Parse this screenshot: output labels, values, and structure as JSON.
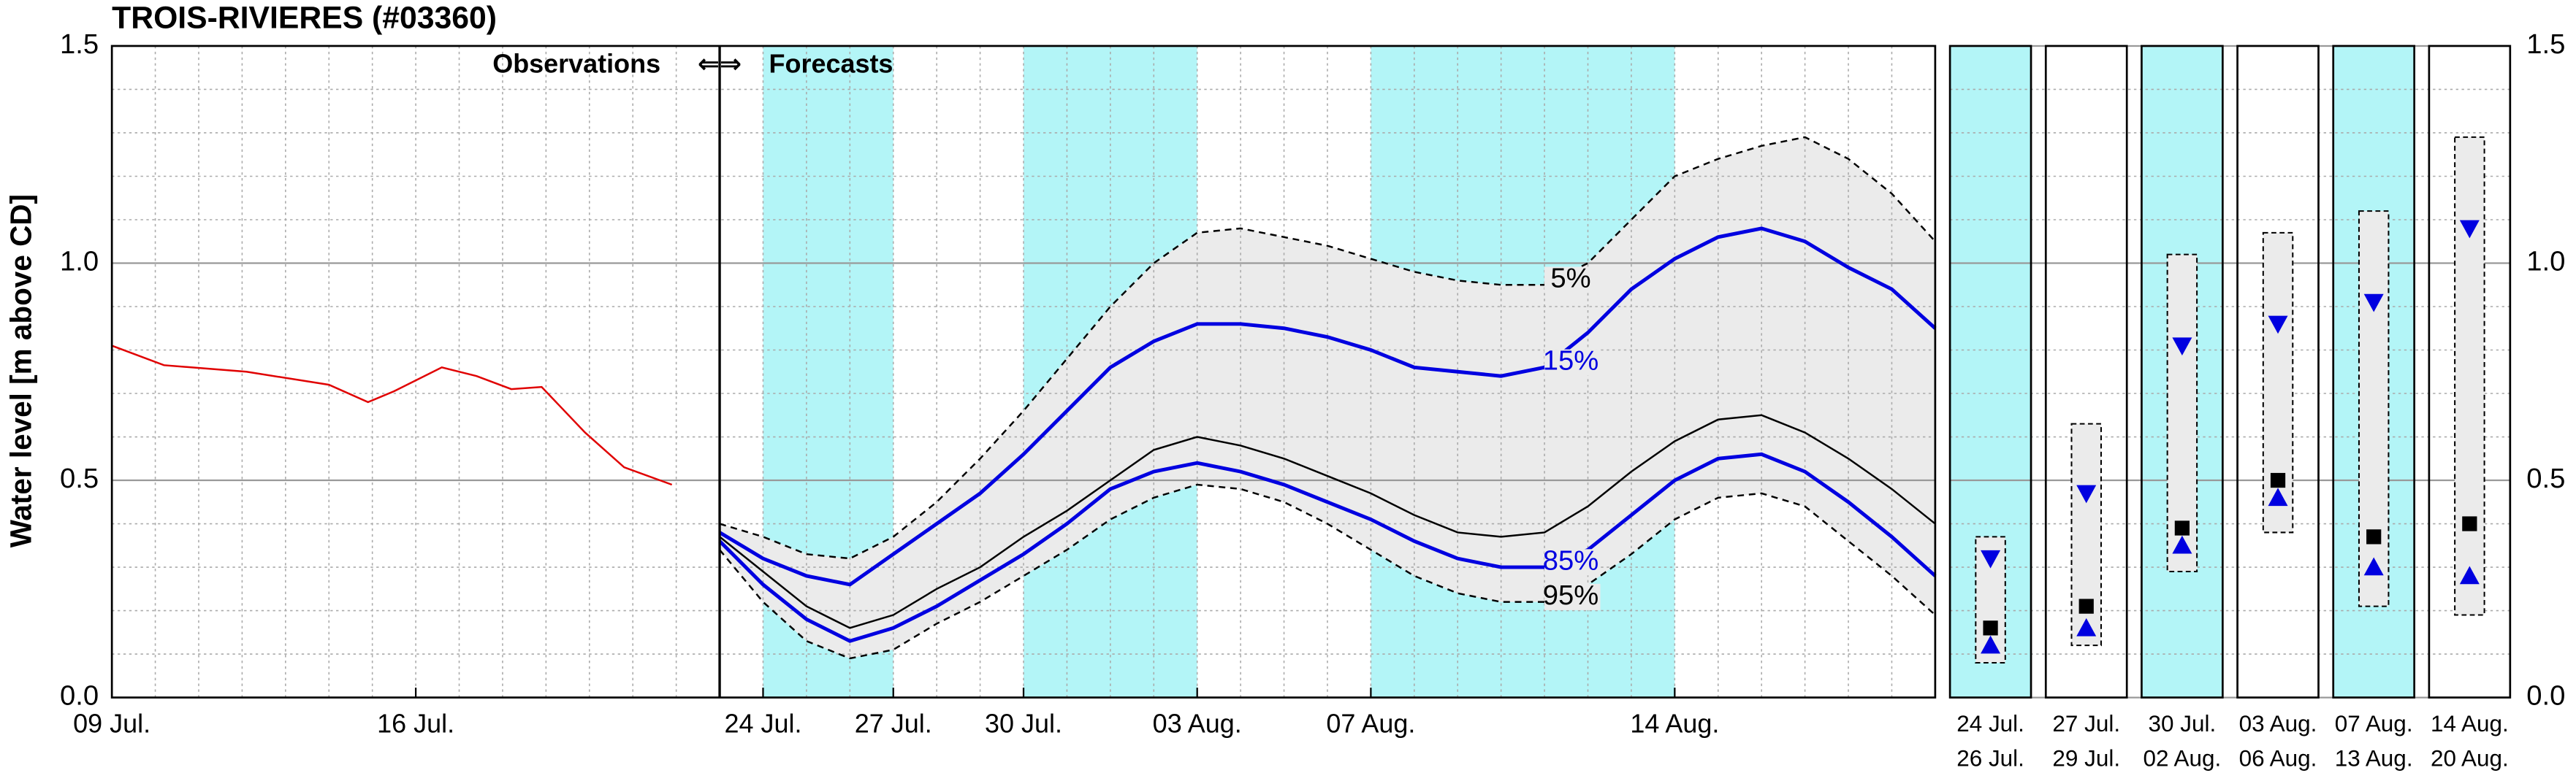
{
  "chart_data": [
    {
      "type": "line",
      "title": "TROIS-RIVIERES (#03360)",
      "ylabel": "Water level [m above CD]",
      "annotations": {
        "observations": "Observations",
        "arrows": "⇐⇒",
        "forecasts": "Forecasts"
      },
      "forecast_start": 14,
      "shaded_spans": [
        [
          15,
          18
        ],
        [
          21,
          25
        ],
        [
          29,
          36
        ]
      ],
      "shade_color": "#b3f5f7",
      "band_color": "#ebebeb",
      "xlim": [
        0,
        42
      ],
      "xticks": [
        {
          "value": 0,
          "label": "09 Jul."
        },
        {
          "value": 7,
          "label": "16 Jul."
        },
        {
          "value": 15,
          "label": "24 Jul."
        },
        {
          "value": 18,
          "label": "27 Jul."
        },
        {
          "value": 21,
          "label": "30 Jul."
        },
        {
          "value": 25,
          "label": "03 Aug."
        },
        {
          "value": 29,
          "label": "07 Aug."
        },
        {
          "value": 36,
          "label": "14 Aug."
        }
      ],
      "ylim": [
        0,
        1.5
      ],
      "yticks": [
        {
          "value": 0,
          "label": "0.0"
        },
        0.5,
        {
          "value": 1,
          "label": "1.0"
        },
        1.5
      ],
      "grid": true,
      "x": [
        14,
        15,
        16,
        17,
        18,
        19,
        20,
        21,
        22,
        23,
        24,
        25,
        26,
        27,
        28,
        29,
        30,
        31,
        32,
        33,
        34,
        35,
        36,
        37,
        38,
        39,
        40,
        41,
        42
      ],
      "series": [
        {
          "color": "#e00000",
          "x": [
            0,
            1.2,
            3.1,
            5,
            5.9,
            6.5,
            7.6,
            8.4,
            9.2,
            9.9,
            10.9,
            11.8,
            12.9
          ],
          "values": [
            0.81,
            0.765,
            0.75,
            0.72,
            0.68,
            0.705,
            0.76,
            0.74,
            0.71,
            0.715,
            0.61,
            0.53,
            0.49
          ]
        },
        {
          "name": "5%",
          "color": "#000000",
          "dash": true,
          "values": [
            0.4,
            0.37,
            0.33,
            0.32,
            0.37,
            0.45,
            0.55,
            0.66,
            0.78,
            0.9,
            1.0,
            1.07,
            1.08,
            1.06,
            1.04,
            1.01,
            0.98,
            0.96,
            0.95,
            0.95,
            1.0,
            1.1,
            1.2,
            1.24,
            1.27,
            1.29,
            1.24,
            1.16,
            1.05
          ]
        },
        {
          "name": "15%",
          "color": "#0000e0",
          "values": [
            0.38,
            0.32,
            0.28,
            0.26,
            0.33,
            0.4,
            0.47,
            0.56,
            0.66,
            0.76,
            0.82,
            0.86,
            0.86,
            0.85,
            0.83,
            0.8,
            0.76,
            0.75,
            0.74,
            0.76,
            0.84,
            0.94,
            1.01,
            1.06,
            1.08,
            1.05,
            0.99,
            0.94,
            0.85
          ]
        },
        {
          "color": "#000000",
          "values": [
            0.37,
            0.29,
            0.21,
            0.16,
            0.19,
            0.25,
            0.3,
            0.37,
            0.43,
            0.5,
            0.57,
            0.6,
            0.58,
            0.55,
            0.51,
            0.47,
            0.42,
            0.38,
            0.37,
            0.38,
            0.44,
            0.52,
            0.59,
            0.64,
            0.65,
            0.61,
            0.55,
            0.48,
            0.4
          ]
        },
        {
          "name": "85%",
          "color": "#0000e0",
          "values": [
            0.36,
            0.26,
            0.18,
            0.13,
            0.16,
            0.21,
            0.27,
            0.33,
            0.4,
            0.48,
            0.52,
            0.54,
            0.52,
            0.49,
            0.45,
            0.41,
            0.36,
            0.32,
            0.3,
            0.3,
            0.34,
            0.42,
            0.5,
            0.55,
            0.56,
            0.52,
            0.45,
            0.37,
            0.28
          ]
        },
        {
          "name": "95%",
          "color": "#000000",
          "dash": true,
          "values": [
            0.34,
            0.22,
            0.13,
            0.09,
            0.11,
            0.17,
            0.22,
            0.28,
            0.34,
            0.41,
            0.46,
            0.49,
            0.48,
            0.45,
            0.4,
            0.34,
            0.28,
            0.24,
            0.22,
            0.22,
            0.26,
            0.33,
            0.41,
            0.46,
            0.47,
            0.44,
            0.36,
            0.28,
            0.19
          ]
        }
      ]
    },
    {
      "type": "range",
      "ylim": [
        0,
        1.5
      ],
      "yticks": [
        {
          "value": 0,
          "label": "0.0"
        },
        0.5,
        {
          "value": 1,
          "label": "1.0"
        },
        1.5
      ],
      "shade_color": "#b3f5f7",
      "marker_color": "#0000e0",
      "panels": [
        {
          "start": "24 Jul.",
          "end": "26 Jul.",
          "shaded": true,
          "min": 0.08,
          "max": 0.37,
          "median": 0.16,
          "upper": 0.32,
          "lower": 0.12
        },
        {
          "start": "27 Jul.",
          "end": "29 Jul.",
          "shaded": false,
          "min": 0.12,
          "max": 0.63,
          "median": 0.21,
          "upper": 0.47,
          "lower": 0.16
        },
        {
          "start": "30 Jul.",
          "end": "02 Aug.",
          "shaded": true,
          "min": 0.29,
          "max": 1.02,
          "median": 0.39,
          "upper": 0.81,
          "lower": 0.35
        },
        {
          "start": "03 Aug.",
          "end": "06 Aug.",
          "shaded": false,
          "min": 0.38,
          "max": 1.07,
          "median": 0.5,
          "upper": 0.86,
          "lower": 0.46
        },
        {
          "start": "07 Aug.",
          "end": "13 Aug.",
          "shaded": true,
          "min": 0.21,
          "max": 1.12,
          "median": 0.37,
          "upper": 0.91,
          "lower": 0.3
        },
        {
          "start": "14 Aug.",
          "end": "20 Aug.",
          "shaded": false,
          "min": 0.19,
          "max": 1.29,
          "median": 0.4,
          "upper": 1.08,
          "lower": 0.28
        }
      ]
    }
  ]
}
